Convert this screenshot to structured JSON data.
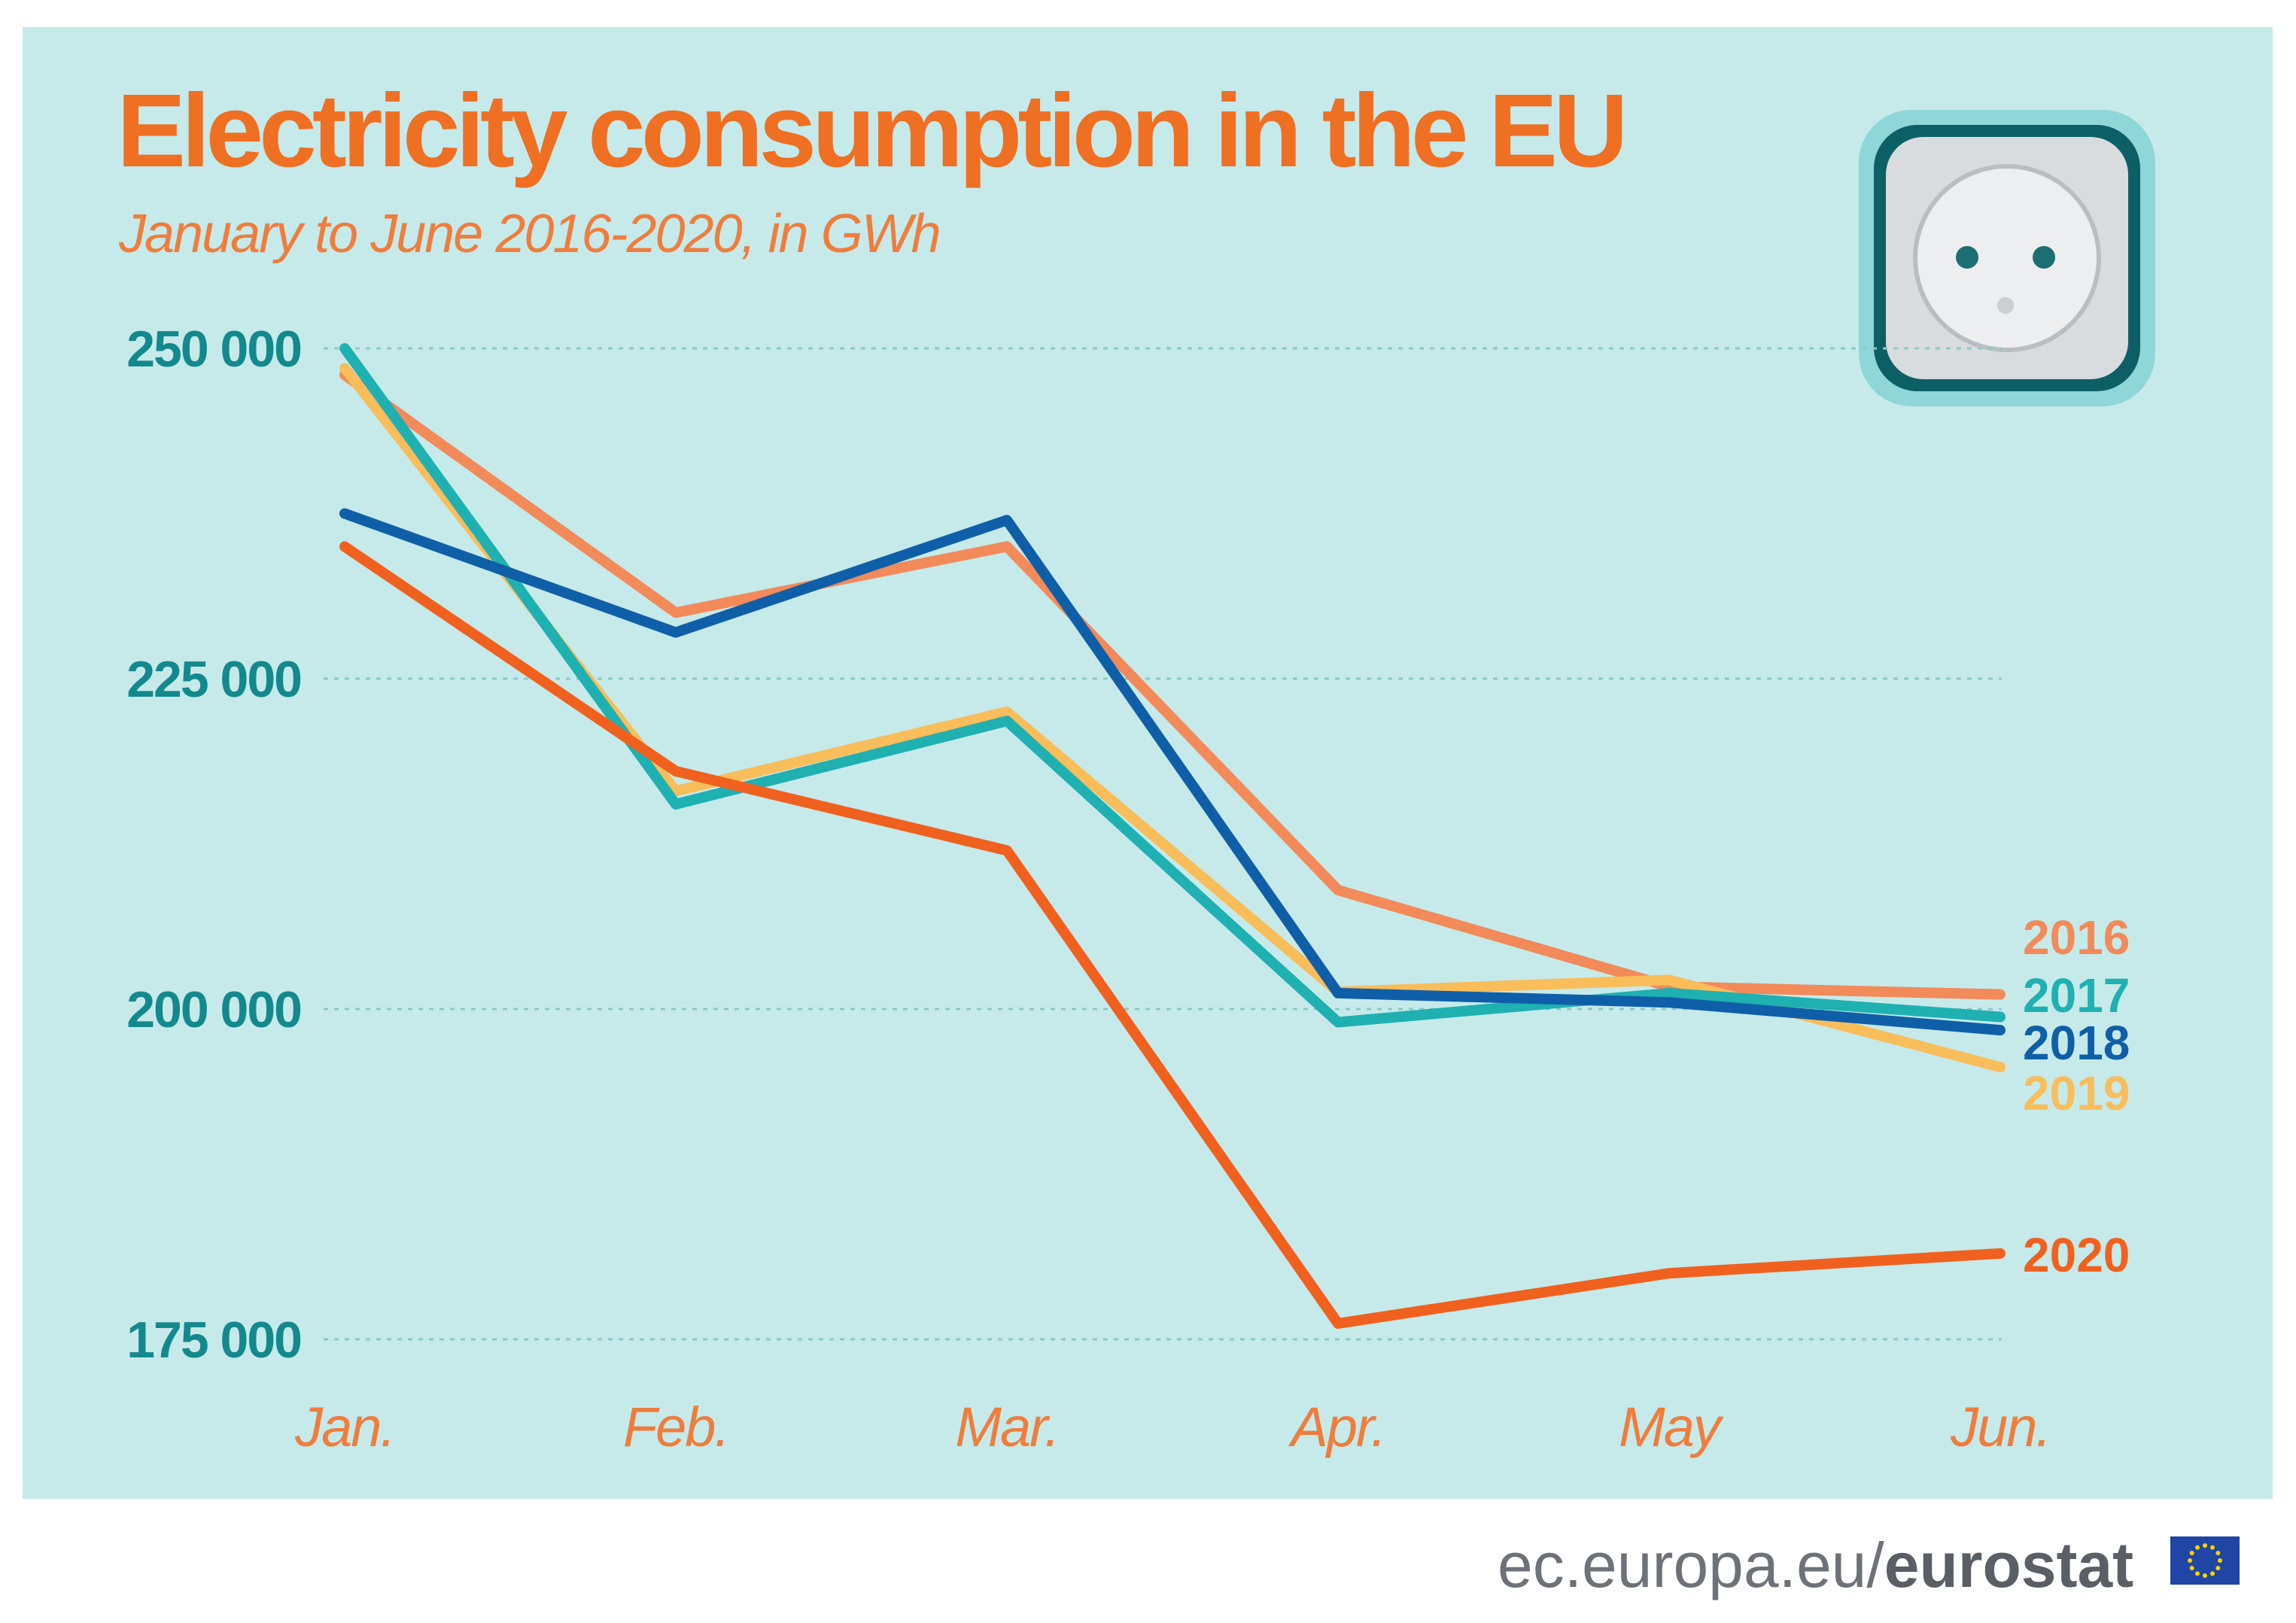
{
  "chart_data": {
    "type": "line",
    "title": "Electricity consumption in the EU",
    "subtitle": "January to June 2016-2020, in GWh",
    "categories": [
      "Jan.",
      "Feb.",
      "Mar.",
      "Apr.",
      "May",
      "Jun."
    ],
    "ylim": [
      175000,
      250000
    ],
    "yticks": [
      {
        "value": 250000,
        "label": "250 000"
      },
      {
        "value": 225000,
        "label": "225 000"
      },
      {
        "value": 200000,
        "label": "200 000"
      },
      {
        "value": 175000,
        "label": "175 000"
      }
    ],
    "grid": true,
    "legend": "right, at line ends",
    "series": [
      {
        "name": "2016",
        "color": "#f28a5a",
        "values": [
          248000,
          230000,
          235000,
          209000,
          201700,
          201100
        ]
      },
      {
        "name": "2017",
        "color": "#1fb0b2",
        "values": [
          250000,
          215500,
          221800,
          199000,
          201200,
          199400
        ]
      },
      {
        "name": "2018",
        "color": "#0f5fa8",
        "values": [
          237500,
          228500,
          237000,
          201200,
          200500,
          198400
        ]
      },
      {
        "name": "2019",
        "color": "#f9bd5a",
        "values": [
          248500,
          216500,
          222500,
          201300,
          202200,
          195600
        ]
      },
      {
        "name": "2020",
        "color": "#f0611f",
        "values": [
          235000,
          218000,
          212000,
          176200,
          180000,
          181500
        ]
      }
    ]
  },
  "footer": {
    "domain": "ec.europa.eu/",
    "brand": "eurostat"
  }
}
